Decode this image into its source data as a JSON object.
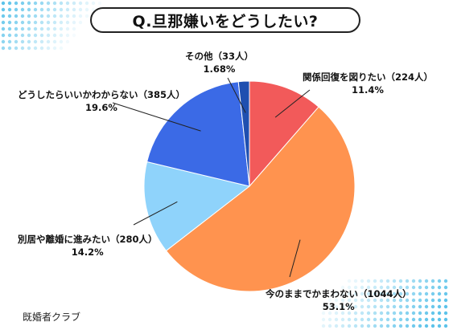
{
  "title": "Q.旦那嫌いをどうしたい?",
  "brand": "既婚者クラブ",
  "colors": {
    "dots": "#5cc3ea",
    "leader": "#222222"
  },
  "chart_data": {
    "type": "pie",
    "title": "Q.旦那嫌いをどうしたい?",
    "start": "top, clockwise",
    "slices": [
      {
        "name": "関係回復を図りたい",
        "count_label": "（224人）",
        "count": 224,
        "percent": 11.4,
        "percent_label": "11.4%",
        "color": "#f25a5a"
      },
      {
        "name": "今のままでかまわない",
        "count_label": "（1044人）",
        "count": 1044,
        "percent": 53.1,
        "percent_label": "53.1%",
        "color": "#ff934f"
      },
      {
        "name": "別居や離婚に進みたい",
        "count_label": "（280人）",
        "count": 280,
        "percent": 14.2,
        "percent_label": "14.2%",
        "color": "#8fd3fb"
      },
      {
        "name": "どうしたらいいかわからない",
        "count_label": "（385人）",
        "count": 385,
        "percent": 19.6,
        "percent_label": "19.6%",
        "color": "#3b6ae6"
      },
      {
        "name": "その他",
        "count_label": "（33人）",
        "count": 33,
        "percent": 1.68,
        "percent_label": "1.68%",
        "color": "#1f4fb0"
      }
    ]
  }
}
